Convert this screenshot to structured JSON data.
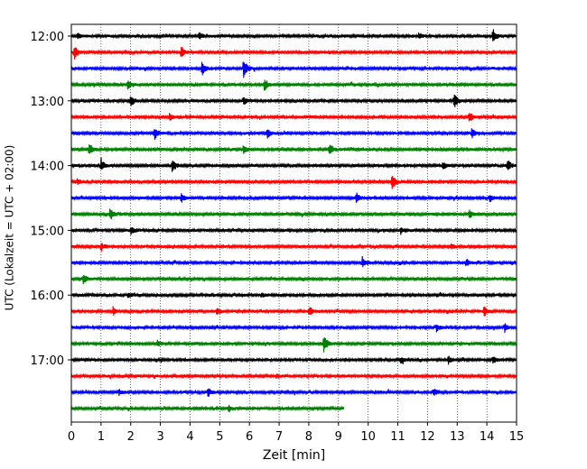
{
  "chart_data": {
    "type": "line",
    "subtype": "helicorder",
    "xlabel": "Zeit  [min]",
    "ylabel": "UTC (Lokalzeit = UTC + 02:00)",
    "xlim": [
      0,
      15
    ],
    "x_ticks": [
      0,
      1,
      2,
      3,
      4,
      5,
      6,
      7,
      8,
      9,
      10,
      11,
      12,
      13,
      14,
      15
    ],
    "y_ticks": [
      {
        "label": "12:00",
        "trace": 0
      },
      {
        "label": "13:00",
        "trace": 4
      },
      {
        "label": "14:00",
        "trace": 8
      },
      {
        "label": "15:00",
        "trace": 12
      },
      {
        "label": "16:00",
        "trace": 16
      },
      {
        "label": "17:00",
        "trace": 20
      }
    ],
    "vertical_grid": "dotted, every 1 min",
    "trace_interval_min": 15,
    "color_cycle": [
      "#000000",
      "#ff0000",
      "#0000ff",
      "#008000"
    ],
    "series": [
      {
        "start": "12:00",
        "end_min": 15,
        "events": [
          {
            "t": 0.2,
            "amp": 0.4
          },
          {
            "t": 4.3,
            "amp": 0.5
          },
          {
            "t": 11.7,
            "amp": 0.4
          },
          {
            "t": 14.2,
            "amp": 0.9
          }
        ]
      },
      {
        "start": "12:15",
        "end_min": 15,
        "events": [
          {
            "t": 0.1,
            "amp": 1.0
          },
          {
            "t": 3.7,
            "amp": 0.7
          }
        ]
      },
      {
        "start": "12:30",
        "end_min": 15,
        "events": [
          {
            "t": 4.4,
            "amp": 0.9
          },
          {
            "t": 5.8,
            "amp": 1.5
          }
        ]
      },
      {
        "start": "12:45",
        "end_min": 15,
        "events": [
          {
            "t": 1.9,
            "amp": 0.7
          },
          {
            "t": 6.5,
            "amp": 0.9
          }
        ]
      },
      {
        "start": "13:00",
        "end_min": 15,
        "events": [
          {
            "t": 2.0,
            "amp": 0.8
          },
          {
            "t": 5.8,
            "amp": 0.5
          },
          {
            "t": 12.9,
            "amp": 0.9
          }
        ]
      },
      {
        "start": "13:15",
        "end_min": 15,
        "events": [
          {
            "t": 3.3,
            "amp": 0.5
          },
          {
            "t": 13.4,
            "amp": 0.8
          }
        ]
      },
      {
        "start": "13:30",
        "end_min": 15,
        "events": [
          {
            "t": 2.8,
            "amp": 0.8
          },
          {
            "t": 6.6,
            "amp": 0.6
          },
          {
            "t": 13.5,
            "amp": 0.7
          }
        ]
      },
      {
        "start": "13:45",
        "end_min": 15,
        "events": [
          {
            "t": 0.6,
            "amp": 0.7
          },
          {
            "t": 5.8,
            "amp": 0.6
          },
          {
            "t": 8.7,
            "amp": 0.8
          }
        ]
      },
      {
        "start": "14:00",
        "end_min": 15,
        "events": [
          {
            "t": 1.0,
            "amp": 0.9
          },
          {
            "t": 3.4,
            "amp": 0.9
          },
          {
            "t": 12.5,
            "amp": 0.5
          },
          {
            "t": 14.7,
            "amp": 0.7
          }
        ]
      },
      {
        "start": "14:15",
        "end_min": 15,
        "events": [
          {
            "t": 0.2,
            "amp": 0.4
          },
          {
            "t": 10.8,
            "amp": 1.1
          }
        ]
      },
      {
        "start": "14:30",
        "end_min": 15,
        "events": [
          {
            "t": 3.7,
            "amp": 0.6
          },
          {
            "t": 9.6,
            "amp": 0.7
          },
          {
            "t": 14.1,
            "amp": 0.5
          }
        ]
      },
      {
        "start": "14:45",
        "end_min": 15,
        "events": [
          {
            "t": 1.3,
            "amp": 0.8
          },
          {
            "t": 13.4,
            "amp": 0.6
          }
        ]
      },
      {
        "start": "15:00",
        "end_min": 15,
        "events": [
          {
            "t": 2.0,
            "amp": 0.5
          },
          {
            "t": 11.1,
            "amp": 0.4
          }
        ]
      },
      {
        "start": "15:15",
        "end_min": 15,
        "events": [
          {
            "t": 1.0,
            "amp": 0.6
          },
          {
            "t": 12.8,
            "amp": 0.4
          }
        ]
      },
      {
        "start": "15:30",
        "end_min": 15,
        "events": [
          {
            "t": 9.8,
            "amp": 0.7
          },
          {
            "t": 13.3,
            "amp": 0.5
          }
        ]
      },
      {
        "start": "15:45",
        "end_min": 15,
        "events": [
          {
            "t": 0.4,
            "amp": 0.7
          }
        ]
      },
      {
        "start": "16:00",
        "end_min": 15,
        "events": [
          {
            "t": 1.9,
            "amp": 0.3
          },
          {
            "t": 6.4,
            "amp": 0.3
          }
        ]
      },
      {
        "start": "16:15",
        "end_min": 15,
        "events": [
          {
            "t": 1.4,
            "amp": 0.5
          },
          {
            "t": 4.9,
            "amp": 0.4
          },
          {
            "t": 8.0,
            "amp": 0.7
          },
          {
            "t": 13.9,
            "amp": 0.6
          }
        ]
      },
      {
        "start": "16:30",
        "end_min": 15,
        "events": [
          {
            "t": 12.3,
            "amp": 0.5
          },
          {
            "t": 14.6,
            "amp": 0.5
          }
        ]
      },
      {
        "start": "16:45",
        "end_min": 15,
        "events": [
          {
            "t": 2.9,
            "amp": 0.4
          },
          {
            "t": 8.5,
            "amp": 1.0
          }
        ]
      },
      {
        "start": "17:00",
        "end_min": 15,
        "events": [
          {
            "t": 11.1,
            "amp": 0.4
          },
          {
            "t": 12.7,
            "amp": 0.5
          },
          {
            "t": 14.2,
            "amp": 0.5
          }
        ]
      },
      {
        "start": "17:15",
        "end_min": 15,
        "events": [
          {
            "t": 6.9,
            "amp": 0.3
          }
        ]
      },
      {
        "start": "17:30",
        "end_min": 15,
        "events": [
          {
            "t": 1.6,
            "amp": 0.4
          },
          {
            "t": 4.6,
            "amp": 0.6
          },
          {
            "t": 12.2,
            "amp": 0.5
          }
        ]
      },
      {
        "start": "17:45",
        "end_min": 9.2,
        "events": [
          {
            "t": 5.3,
            "amp": 0.4
          }
        ]
      }
    ]
  }
}
